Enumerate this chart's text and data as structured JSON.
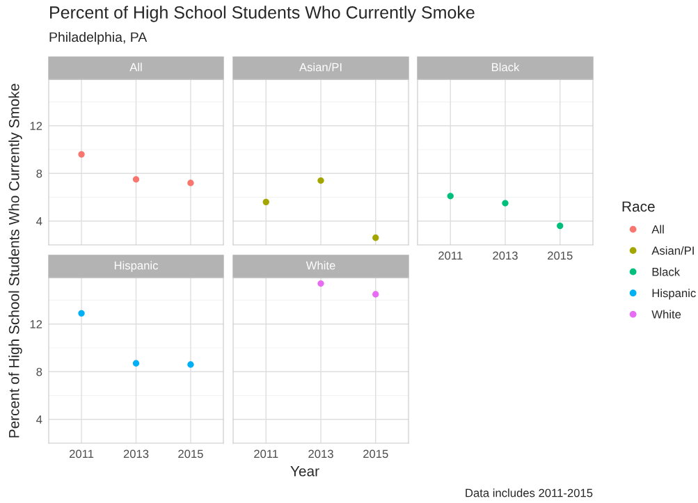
{
  "chart_data": [
    {
      "type": "scatter",
      "title": "Percent of High School Students Who Currently Smoke",
      "subtitle": "Philadelphia, PA",
      "xlabel": "Year",
      "ylabel": "Percent of High School Students Who Currently Smoke",
      "legend_title": "Race",
      "legend": "right",
      "annotations": [
        "Data includes 2011-2015"
      ],
      "categories": [
        "2011",
        "2013",
        "2015"
      ],
      "series": [
        {
          "name": "All",
          "color": "#f8766d",
          "values": [
            9.6,
            7.5,
            7.2
          ]
        }
      ],
      "ylim": [
        2.0,
        15.9
      ],
      "yticks": [
        4,
        8,
        12
      ],
      "grid": true,
      "marker": "circle",
      "tick_labels": "y"
    },
    {
      "type": "scatter",
      "categories": [
        "2011",
        "2013",
        "2015"
      ],
      "series": [
        {
          "name": "Asian/PI",
          "color": "#a3a500",
          "values": [
            5.6,
            7.4,
            2.6
          ]
        }
      ],
      "ylim": [
        2.0,
        15.9
      ],
      "yticks": [
        4,
        8,
        12
      ],
      "grid": true,
      "marker": "circle",
      "tick_labels": false
    },
    {
      "type": "scatter",
      "categories": [
        "2011",
        "2013",
        "2015"
      ],
      "series": [
        {
          "name": "Black",
          "color": "#00bf7d",
          "values": [
            6.1,
            5.5,
            3.6
          ]
        }
      ],
      "ylim": [
        2.0,
        15.9
      ],
      "yticks": [
        4,
        8,
        12
      ],
      "grid": true,
      "marker": "circle",
      "tick_labels": "x"
    },
    {
      "type": "scatter",
      "categories": [
        "2011",
        "2013",
        "2015"
      ],
      "series": [
        {
          "name": "Hispanic",
          "color": "#00b0f6",
          "values": [
            12.9,
            8.7,
            8.6
          ]
        }
      ],
      "ylim": [
        2.0,
        15.9
      ],
      "yticks": [
        4,
        8,
        12
      ],
      "grid": true,
      "marker": "circle"
    },
    {
      "type": "scatter",
      "categories": [
        "2011",
        "2013",
        "2015"
      ],
      "series": [
        {
          "name": "White",
          "color": "#e76bf3",
          "values": [
            null,
            15.4,
            14.5
          ]
        }
      ],
      "ylim": [
        2.0,
        15.9
      ],
      "yticks": [
        4,
        8,
        12
      ],
      "grid": true,
      "marker": "circle",
      "tick_labels": "x"
    }
  ]
}
